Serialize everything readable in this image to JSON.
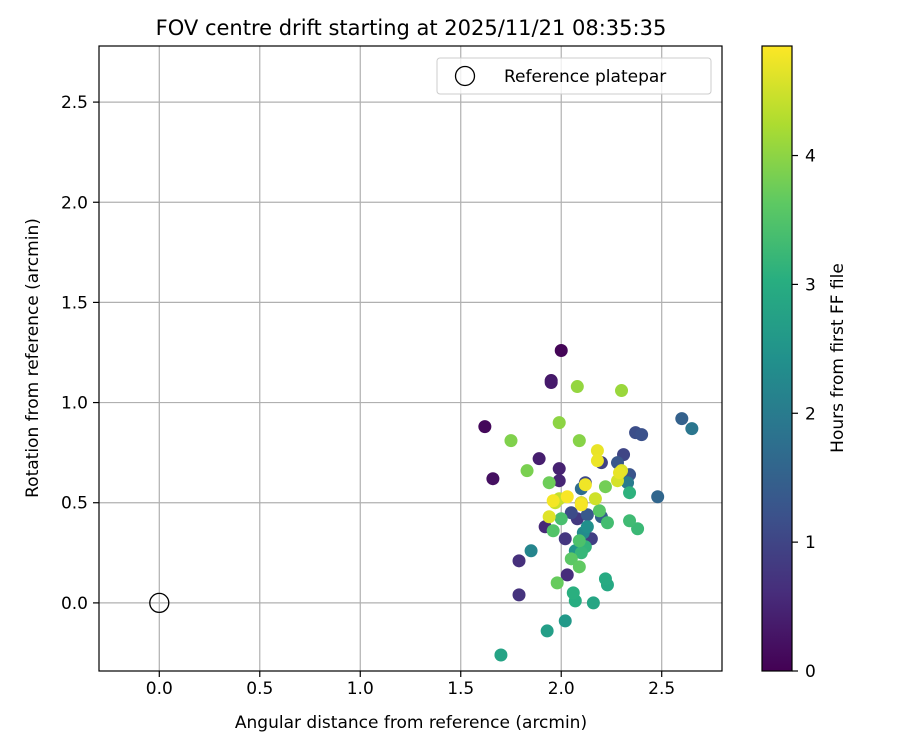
{
  "chart_data": {
    "type": "scatter",
    "title": "FOV centre drift starting at 2025/11/21 08:35:35",
    "xlabel": "Angular distance from reference (arcmin)",
    "ylabel": "Rotation from reference (arcmin)",
    "xlim": [
      -0.3,
      2.8
    ],
    "ylim": [
      -0.34,
      2.78
    ],
    "x_ticks": [
      0.0,
      0.5,
      1.0,
      1.5,
      2.0,
      2.5
    ],
    "x_tick_labels": [
      "0.0",
      "0.5",
      "1.0",
      "1.5",
      "2.0",
      "2.5"
    ],
    "y_ticks": [
      0.0,
      0.5,
      1.0,
      1.5,
      2.0,
      2.5
    ],
    "y_tick_labels": [
      "0.0",
      "0.5",
      "1.0",
      "1.5",
      "2.0",
      "2.5"
    ],
    "grid": true,
    "legend": {
      "position": "top-right",
      "label": "Reference platepar"
    },
    "reference_point": {
      "x": 0.0,
      "y": 0.0
    },
    "colorbar": {
      "label": "Hours from first FF file",
      "min": 0,
      "max": 4.85,
      "ticks": [
        0,
        1,
        2,
        3,
        4
      ],
      "tick_labels": [
        "0",
        "1",
        "2",
        "3",
        "4"
      ],
      "colormap": "viridis"
    },
    "points": [
      {
        "x": 2.0,
        "y": 1.26,
        "t": 0.05
      },
      {
        "x": 1.62,
        "y": 0.88,
        "t": 0.1
      },
      {
        "x": 1.66,
        "y": 0.62,
        "t": 0.2
      },
      {
        "x": 1.95,
        "y": 1.11,
        "t": 0.3
      },
      {
        "x": 1.95,
        "y": 1.1,
        "t": 0.35
      },
      {
        "x": 1.89,
        "y": 0.72,
        "t": 0.4
      },
      {
        "x": 1.99,
        "y": 0.67,
        "t": 0.45
      },
      {
        "x": 1.99,
        "y": 0.61,
        "t": 0.5
      },
      {
        "x": 1.92,
        "y": 0.38,
        "t": 0.55
      },
      {
        "x": 2.03,
        "y": 0.14,
        "t": 0.6
      },
      {
        "x": 1.79,
        "y": 0.21,
        "t": 0.65
      },
      {
        "x": 1.79,
        "y": 0.04,
        "t": 0.7
      },
      {
        "x": 2.02,
        "y": 0.32,
        "t": 0.75
      },
      {
        "x": 2.08,
        "y": 0.42,
        "t": 0.8
      },
      {
        "x": 2.1,
        "y": 0.5,
        "t": 0.85
      },
      {
        "x": 2.15,
        "y": 0.32,
        "t": 0.9
      },
      {
        "x": 2.2,
        "y": 0.7,
        "t": 0.95
      },
      {
        "x": 2.31,
        "y": 0.74,
        "t": 1.0
      },
      {
        "x": 2.12,
        "y": 0.6,
        "t": 1.05
      },
      {
        "x": 2.05,
        "y": 0.45,
        "t": 1.1
      },
      {
        "x": 2.37,
        "y": 0.85,
        "t": 1.15
      },
      {
        "x": 2.4,
        "y": 0.84,
        "t": 1.2
      },
      {
        "x": 2.34,
        "y": 0.64,
        "t": 1.25
      },
      {
        "x": 2.28,
        "y": 0.7,
        "t": 1.3
      },
      {
        "x": 2.13,
        "y": 0.44,
        "t": 1.35
      },
      {
        "x": 2.2,
        "y": 0.43,
        "t": 1.45
      },
      {
        "x": 2.6,
        "y": 0.92,
        "t": 1.5
      },
      {
        "x": 2.48,
        "y": 0.53,
        "t": 1.6
      },
      {
        "x": 2.1,
        "y": 0.57,
        "t": 1.7
      },
      {
        "x": 2.65,
        "y": 0.87,
        "t": 1.9
      },
      {
        "x": 2.33,
        "y": 0.6,
        "t": 2.0
      },
      {
        "x": 1.85,
        "y": 0.26,
        "t": 2.2
      },
      {
        "x": 2.11,
        "y": 0.35,
        "t": 2.3
      },
      {
        "x": 2.13,
        "y": 0.38,
        "t": 2.4
      },
      {
        "x": 2.07,
        "y": 0.26,
        "t": 2.5
      },
      {
        "x": 2.02,
        "y": -0.09,
        "t": 2.6
      },
      {
        "x": 1.93,
        "y": -0.14,
        "t": 2.7
      },
      {
        "x": 1.7,
        "y": -0.26,
        "t": 2.8
      },
      {
        "x": 2.16,
        "y": 0.0,
        "t": 2.85
      },
      {
        "x": 2.23,
        "y": 0.09,
        "t": 2.9
      },
      {
        "x": 2.22,
        "y": 0.12,
        "t": 2.95
      },
      {
        "x": 2.07,
        "y": 0.01,
        "t": 3.0
      },
      {
        "x": 2.06,
        "y": 0.05,
        "t": 3.05
      },
      {
        "x": 2.34,
        "y": 0.55,
        "t": 3.1
      },
      {
        "x": 2.12,
        "y": 0.28,
        "t": 3.15
      },
      {
        "x": 2.1,
        "y": 0.25,
        "t": 3.2
      },
      {
        "x": 2.38,
        "y": 0.37,
        "t": 3.25
      },
      {
        "x": 2.34,
        "y": 0.41,
        "t": 3.3
      },
      {
        "x": 2.23,
        "y": 0.4,
        "t": 3.35
      },
      {
        "x": 2.0,
        "y": 0.42,
        "t": 3.4
      },
      {
        "x": 2.09,
        "y": 0.31,
        "t": 3.45
      },
      {
        "x": 1.96,
        "y": 0.36,
        "t": 3.5
      },
      {
        "x": 2.19,
        "y": 0.46,
        "t": 3.55
      },
      {
        "x": 2.05,
        "y": 0.22,
        "t": 3.6
      },
      {
        "x": 2.09,
        "y": 0.18,
        "t": 3.65
      },
      {
        "x": 1.98,
        "y": 0.1,
        "t": 3.7
      },
      {
        "x": 1.94,
        "y": 0.6,
        "t": 3.75
      },
      {
        "x": 2.22,
        "y": 0.58,
        "t": 3.8
      },
      {
        "x": 1.83,
        "y": 0.66,
        "t": 3.85
      },
      {
        "x": 1.75,
        "y": 0.81,
        "t": 3.9
      },
      {
        "x": 2.09,
        "y": 0.81,
        "t": 3.95
      },
      {
        "x": 1.99,
        "y": 0.9,
        "t": 4.0
      },
      {
        "x": 2.08,
        "y": 1.08,
        "t": 4.05
      },
      {
        "x": 2.3,
        "y": 1.06,
        "t": 4.1
      },
      {
        "x": 1.99,
        "y": 0.52,
        "t": 4.4
      },
      {
        "x": 1.97,
        "y": 0.5,
        "t": 4.45
      },
      {
        "x": 2.17,
        "y": 0.52,
        "t": 4.5
      },
      {
        "x": 2.28,
        "y": 0.61,
        "t": 4.55
      },
      {
        "x": 2.3,
        "y": 0.66,
        "t": 4.6
      },
      {
        "x": 1.94,
        "y": 0.43,
        "t": 4.62
      },
      {
        "x": 2.1,
        "y": 0.5,
        "t": 4.65
      },
      {
        "x": 2.29,
        "y": 0.65,
        "t": 4.68
      },
      {
        "x": 2.18,
        "y": 0.76,
        "t": 4.7
      },
      {
        "x": 2.18,
        "y": 0.71,
        "t": 4.72
      },
      {
        "x": 2.12,
        "y": 0.59,
        "t": 4.75
      },
      {
        "x": 1.96,
        "y": 0.51,
        "t": 4.78
      },
      {
        "x": 2.1,
        "y": 0.49,
        "t": 4.8
      },
      {
        "x": 2.03,
        "y": 0.53,
        "t": 4.82
      }
    ]
  }
}
